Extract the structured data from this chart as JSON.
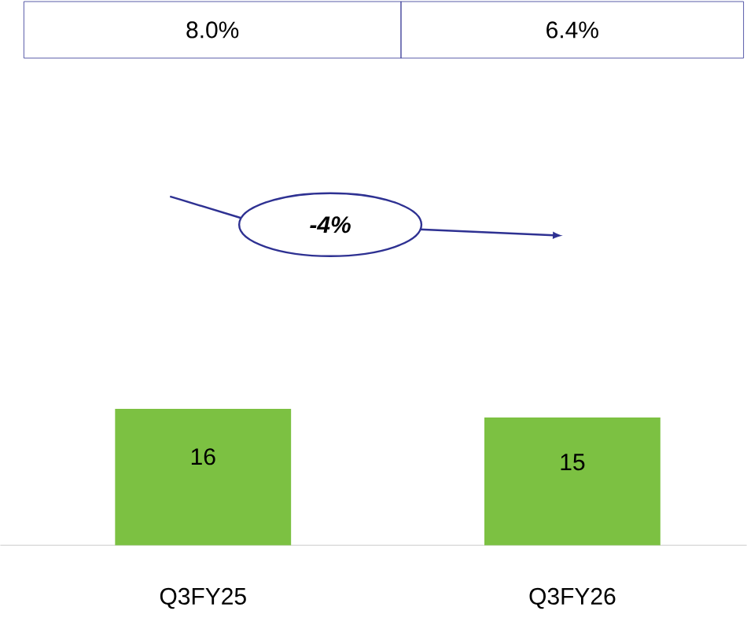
{
  "chart_data": {
    "type": "bar",
    "categories": [
      "Q3FY25",
      "Q3FY26"
    ],
    "values": [
      16,
      15
    ],
    "color": "#7cc142",
    "data_labels": true,
    "ylim": [
      0,
      64
    ],
    "annotations": [
      "8.0%",
      "6.4%",
      "-4%"
    ]
  }
}
